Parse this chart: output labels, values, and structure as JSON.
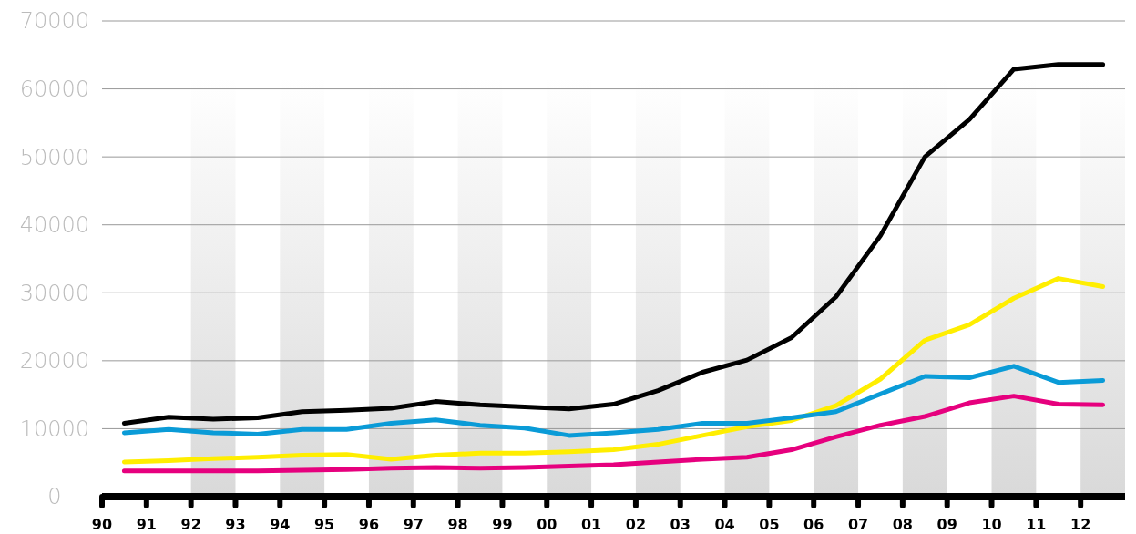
{
  "chart_data": {
    "type": "line",
    "xlim": [
      1990,
      2013
    ],
    "ylim": [
      0,
      70000
    ],
    "xticks": [
      {
        "value": 1990,
        "label": "90"
      },
      {
        "value": 1991,
        "label": "91"
      },
      {
        "value": 1992,
        "label": "92"
      },
      {
        "value": 1993,
        "label": "93"
      },
      {
        "value": 1994,
        "label": "94"
      },
      {
        "value": 1995,
        "label": "95"
      },
      {
        "value": 1996,
        "label": "96"
      },
      {
        "value": 1997,
        "label": "97"
      },
      {
        "value": 1998,
        "label": "98"
      },
      {
        "value": 1999,
        "label": "99"
      },
      {
        "value": 2000,
        "label": "00"
      },
      {
        "value": 2001,
        "label": "01"
      },
      {
        "value": 2002,
        "label": "02"
      },
      {
        "value": 2003,
        "label": "03"
      },
      {
        "value": 2004,
        "label": "04"
      },
      {
        "value": 2005,
        "label": "05"
      },
      {
        "value": 2006,
        "label": "06"
      },
      {
        "value": 2007,
        "label": "07"
      },
      {
        "value": 2008,
        "label": "08"
      },
      {
        "value": 2009,
        "label": "09"
      },
      {
        "value": 2010,
        "label": "10"
      },
      {
        "value": 2011,
        "label": "11"
      },
      {
        "value": 2012,
        "label": "12"
      }
    ],
    "yticks": [
      0,
      10000,
      20000,
      30000,
      40000,
      50000,
      60000,
      70000
    ],
    "x": [
      1990.5,
      1991.5,
      1992.5,
      1993.5,
      1994.5,
      1995.5,
      1996.5,
      1997.5,
      1998.5,
      1999.5,
      2000.5,
      2001.5,
      2002.5,
      2003.5,
      2004.5,
      2005.5,
      2006.5,
      2007.5,
      2008.5,
      2009.5,
      2010.5,
      2011.5,
      2012.5
    ],
    "grid": "y",
    "marker": "none",
    "line_style": "solid",
    "bands": [
      {
        "axis": "x",
        "from": 1992,
        "to": 1993,
        "color": "#d9d9d9"
      },
      {
        "axis": "x",
        "from": 1994,
        "to": 1995,
        "color": "#d9d9d9"
      },
      {
        "axis": "x",
        "from": 1996,
        "to": 1997,
        "color": "#d9d9d9"
      },
      {
        "axis": "x",
        "from": 1998,
        "to": 1999,
        "color": "#d9d9d9"
      },
      {
        "axis": "x",
        "from": 2000,
        "to": 2001,
        "color": "#d9d9d9"
      },
      {
        "axis": "x",
        "from": 2002,
        "to": 2003,
        "color": "#d9d9d9"
      },
      {
        "axis": "x",
        "from": 2004,
        "to": 2005,
        "color": "#d9d9d9"
      },
      {
        "axis": "x",
        "from": 2006,
        "to": 2007,
        "color": "#d9d9d9"
      },
      {
        "axis": "x",
        "from": 2008,
        "to": 2009,
        "color": "#d9d9d9"
      },
      {
        "axis": "x",
        "from": 2010,
        "to": 2011,
        "color": "#d9d9d9"
      },
      {
        "axis": "x",
        "from": 2012,
        "to": 2013,
        "color": "#d9d9d9"
      }
    ],
    "series": [
      {
        "color": "#e6007e",
        "values": [
          3800,
          3800,
          3800,
          3800,
          3900,
          4000,
          4200,
          4300,
          4200,
          4300,
          4500,
          4700,
          5100,
          5500,
          5800,
          6900,
          8800,
          10500,
          11800,
          13800,
          14800,
          13600,
          13500
        ]
      },
      {
        "color": "#ffee00",
        "values": [
          5100,
          5300,
          5600,
          5800,
          6100,
          6200,
          5500,
          6100,
          6400,
          6400,
          6600,
          6900,
          7700,
          9000,
          10300,
          11200,
          13400,
          17300,
          23000,
          25300,
          29200,
          32100,
          30900
        ]
      },
      {
        "color": "#0a9bd7",
        "values": [
          9400,
          9900,
          9400,
          9200,
          9900,
          9900,
          10800,
          11300,
          10500,
          10100,
          9000,
          9400,
          9900,
          10800,
          10800,
          11600,
          12500,
          15100,
          17700,
          17500,
          19200,
          16800,
          17100
        ]
      },
      {
        "color": "#000000",
        "values": [
          10800,
          11700,
          11400,
          11600,
          12500,
          12700,
          13000,
          14000,
          13500,
          13200,
          12900,
          13600,
          15600,
          18300,
          20100,
          23400,
          29400,
          38400,
          50000,
          55500,
          62900,
          63600,
          63600
        ]
      }
    ]
  }
}
